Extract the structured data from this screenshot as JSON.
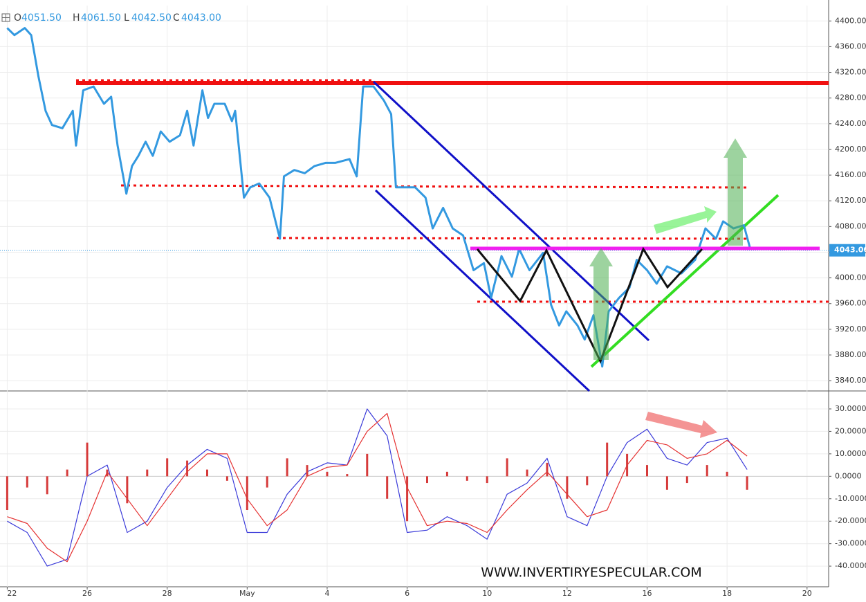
{
  "chart_data": [
    {
      "type": "line",
      "ohlc": [
        {
          "key": "O",
          "text": "4051.50"
        },
        {
          "key": "H",
          "text": "4061.50"
        },
        {
          "key": "L",
          "text": "4042.50"
        },
        {
          "key": "C",
          "text": "4043.00"
        }
      ],
      "xlim": [
        -0.09,
        10.27
      ],
      "ylim": [
        3824,
        4424
      ],
      "yticks": [
        {
          "value": 4400,
          "label": "4400.00"
        },
        {
          "value": 4360,
          "label": "4360.00"
        },
        {
          "value": 4320,
          "label": "4320.00"
        },
        {
          "value": 4280,
          "label": "4280.00"
        },
        {
          "value": 4240,
          "label": "4240.00"
        },
        {
          "value": 4200,
          "label": "4200.00"
        },
        {
          "value": 4160,
          "label": "4160.00"
        },
        {
          "value": 4120,
          "label": "4120.00"
        },
        {
          "value": 4080,
          "label": "4080.00"
        },
        {
          "value": 4040,
          "label": "4040.00"
        },
        {
          "value": 4000,
          "label": "4000.00"
        },
        {
          "value": 3960,
          "label": "3960.00"
        },
        {
          "value": 3920,
          "label": "3920.00"
        },
        {
          "value": 3880,
          "label": "3880.00"
        },
        {
          "value": 3840,
          "label": "3840.00"
        }
      ],
      "grid": true,
      "last_price": {
        "value": 4043,
        "label": "4043.00"
      },
      "x": [
        0,
        0.09,
        0.22,
        0.3,
        0.39,
        0.48,
        0.56,
        0.69,
        0.82,
        0.86,
        0.95,
        1.08,
        1.21,
        1.3,
        1.38,
        1.49,
        1.56,
        1.64,
        1.73,
        1.82,
        1.92,
        2.03,
        2.16,
        2.25,
        2.33,
        2.44,
        2.51,
        2.59,
        2.72,
        2.81,
        2.85,
        2.96,
        3.04,
        3.15,
        3.28,
        3.41,
        3.46,
        3.59,
        3.72,
        3.84,
        3.98,
        4.1,
        4.28,
        4.37,
        4.45,
        4.58,
        4.71,
        4.8,
        4.86,
        4.97,
        5.1,
        5.23,
        5.32,
        5.45,
        5.57,
        5.7,
        5.83,
        5.96,
        6.05,
        6.18,
        6.31,
        6.4,
        6.53,
        6.7,
        6.8,
        6.9,
        6.99,
        7.13,
        7.22,
        7.33,
        7.44,
        7.52,
        7.65,
        7.78,
        7.87,
        8.0,
        8.12,
        8.25,
        8.43,
        8.6,
        8.73,
        8.86,
        8.95,
        9.08,
        9.21,
        9.29
      ],
      "series": [
        {
          "color": "#3399e0",
          "values": [
            4389,
            4378,
            4389,
            4378,
            4314,
            4260,
            4238,
            4233,
            4260,
            4206,
            4292,
            4298,
            4271,
            4282,
            4206,
            4131,
            4174,
            4190,
            4212,
            4190,
            4228,
            4212,
            4222,
            4260,
            4206,
            4292,
            4249,
            4271,
            4271,
            4244,
            4260,
            4125,
            4141,
            4147,
            4125,
            4061,
            4158,
            4168,
            4163,
            4174,
            4179,
            4179,
            4185,
            4158,
            4298,
            4298,
            4276,
            4255,
            4141,
            4141,
            4141,
            4125,
            4077,
            4109,
            4077,
            4066,
            4012,
            4023,
            3969,
            4034,
            4002,
            4045,
            4012,
            4039,
            3958,
            3926,
            3948,
            3926,
            3904,
            3942,
            3862,
            3948,
            3969,
            3985,
            4028,
            4012,
            3991,
            4018,
            4007,
            4028,
            4077,
            4061,
            4088,
            4077,
            4082,
            4045
          ]
        }
      ]
    },
    {
      "type": "line",
      "xlim": [
        -0.09,
        10.27
      ],
      "ylim": [
        -49.2,
        38
      ],
      "yticks": [
        {
          "value": 30,
          "label": "30.0000"
        },
        {
          "value": 20,
          "label": "20.0000"
        },
        {
          "value": 10,
          "label": "10.0000"
        },
        {
          "value": 0,
          "label": "0.0000"
        },
        {
          "value": -10,
          "label": "-10.0000"
        },
        {
          "value": -20,
          "label": "-20.0000"
        },
        {
          "value": -30,
          "label": "-30.0000"
        },
        {
          "value": -40,
          "label": "-40.0000"
        }
      ],
      "xticks": [
        {
          "value": 0,
          "label": "22"
        },
        {
          "value": 1,
          "label": "26"
        },
        {
          "value": 2,
          "label": "28"
        },
        {
          "value": 3,
          "label": "May"
        },
        {
          "value": 4,
          "label": "4"
        },
        {
          "value": 5,
          "label": "6"
        },
        {
          "value": 6,
          "label": "10"
        },
        {
          "value": 7,
          "label": "12"
        },
        {
          "value": 8,
          "label": "16"
        },
        {
          "value": 9,
          "label": "18"
        },
        {
          "value": 10,
          "label": "20"
        }
      ],
      "x": [
        0,
        0.25,
        0.5,
        0.75,
        1,
        1.25,
        1.5,
        1.75,
        2,
        2.25,
        2.5,
        2.75,
        3,
        3.25,
        3.5,
        3.75,
        4,
        4.25,
        4.5,
        4.75,
        5,
        5.25,
        5.5,
        5.75,
        6,
        6.25,
        6.5,
        6.75,
        7,
        7.25,
        7.5,
        7.75,
        8,
        8.25,
        8.5,
        8.75,
        9,
        9.25
      ],
      "series": [
        {
          "type": "line",
          "color": "#3b3bd9",
          "values": [
            -20,
            -25,
            -40,
            -37,
            0,
            5,
            -25,
            -20,
            -5,
            5,
            12,
            8,
            -25,
            -25,
            -8,
            2,
            6,
            5,
            30,
            18,
            -25,
            -24,
            -18,
            -22,
            -28,
            -8,
            -3,
            8,
            -18,
            -22,
            0,
            15,
            21,
            8,
            5,
            15,
            17,
            3
          ]
        },
        {
          "type": "line",
          "color": "#e53030",
          "values": [
            -18,
            -21,
            -32,
            -38,
            -20,
            2,
            -10,
            -22,
            -10,
            2,
            10,
            10,
            -10,
            -22,
            -15,
            0,
            4,
            5,
            20,
            28,
            -5,
            -22,
            -20,
            -21,
            -25,
            -15,
            -6,
            2,
            -8,
            -18,
            -15,
            5,
            16,
            14,
            8,
            10,
            16,
            9
          ]
        },
        {
          "type": "bar",
          "color": "#d63a3a",
          "values": [
            -15,
            -5,
            -8,
            3,
            15,
            3,
            -12,
            3,
            8,
            7,
            3,
            -2,
            -15,
            -5,
            8,
            5,
            2,
            1,
            10,
            -10,
            -20,
            -3,
            2,
            -2,
            -3,
            8,
            3,
            6,
            -10,
            -4,
            15,
            10,
            5,
            -6,
            -3,
            5,
            2,
            -6
          ]
        }
      ]
    }
  ],
  "watermark": "WWW.INVERTIRYESPECULAR.COM"
}
